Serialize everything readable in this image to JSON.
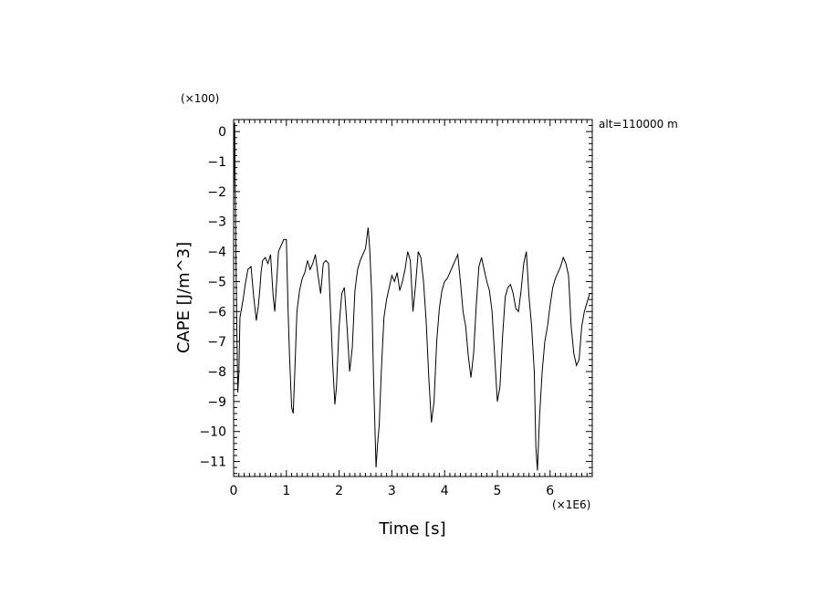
{
  "chart_data": {
    "type": "line",
    "xlabel": "Time [s]",
    "ylabel": "CAPE [J/m^3]",
    "x_multiplier": "(×1E6)",
    "y_multiplier": "(×100)",
    "annotation": "alt=110000 m",
    "xlim": [
      0,
      6.8
    ],
    "ylim": [
      -11.5,
      0.4
    ],
    "grid": false,
    "x_ticks": [
      0,
      1,
      2,
      3,
      4,
      5,
      6
    ],
    "y_ticks": [
      0,
      -1,
      -2,
      -3,
      -4,
      -5,
      -6,
      -7,
      -8,
      -9,
      -10,
      -11
    ],
    "series": [
      {
        "x": [
          0,
          0.02,
          0.04,
          0.06,
          0.08,
          0.1,
          0.12,
          0.15,
          0.18,
          0.22,
          0.27,
          0.33,
          0.38,
          0.43,
          0.47,
          0.5,
          0.52,
          0.55,
          0.6,
          0.65,
          0.7,
          0.75,
          0.78,
          0.82,
          0.85,
          0.9,
          0.95,
          1.0,
          1.03,
          1.06,
          1.1,
          1.13,
          1.16,
          1.2,
          1.25,
          1.3,
          1.35,
          1.4,
          1.45,
          1.5,
          1.55,
          1.6,
          1.65,
          1.7,
          1.75,
          1.8,
          1.85,
          1.88,
          1.92,
          1.95,
          2.0,
          2.05,
          2.1,
          2.15,
          2.2,
          2.25,
          2.3,
          2.35,
          2.4,
          2.45,
          2.5,
          2.55,
          2.58,
          2.62,
          2.65,
          2.7,
          2.73,
          2.76,
          2.8,
          2.85,
          2.9,
          2.95,
          3.0,
          3.05,
          3.1,
          3.15,
          3.2,
          3.25,
          3.3,
          3.35,
          3.4,
          3.45,
          3.5,
          3.55,
          3.6,
          3.65,
          3.7,
          3.75,
          3.8,
          3.85,
          3.9,
          3.95,
          4.0,
          4.05,
          4.1,
          4.15,
          4.2,
          4.25,
          4.3,
          4.35,
          4.4,
          4.45,
          4.5,
          4.55,
          4.6,
          4.65,
          4.7,
          4.75,
          4.8,
          4.85,
          4.9,
          4.95,
          5.0,
          5.05,
          5.1,
          5.15,
          5.2,
          5.25,
          5.3,
          5.35,
          5.4,
          5.45,
          5.5,
          5.55,
          5.6,
          5.65,
          5.7,
          5.73,
          5.76,
          5.8,
          5.85,
          5.9,
          5.95,
          6.0,
          6.05,
          6.1,
          6.15,
          6.2,
          6.25,
          6.3,
          6.35,
          6.4,
          6.45,
          6.5,
          6.55,
          6.6,
          6.65,
          6.7,
          6.75,
          6.8
        ],
        "y": [
          -2.5,
          0.3,
          -3.5,
          -6.5,
          -8.7,
          -8.0,
          -6.2,
          -5.9,
          -5.6,
          -5.1,
          -4.6,
          -4.5,
          -5.5,
          -6.3,
          -5.8,
          -5.2,
          -4.7,
          -4.3,
          -4.2,
          -4.4,
          -4.1,
          -5.5,
          -6.0,
          -4.9,
          -4.0,
          -3.8,
          -3.6,
          -3.6,
          -5.8,
          -7.5,
          -9.2,
          -9.4,
          -8.0,
          -6.0,
          -5.3,
          -4.9,
          -4.7,
          -4.3,
          -4.6,
          -4.4,
          -4.1,
          -4.8,
          -5.4,
          -4.4,
          -4.3,
          -4.4,
          -6.5,
          -7.8,
          -9.1,
          -8.5,
          -6.5,
          -5.4,
          -5.2,
          -6.5,
          -8.0,
          -7.2,
          -5.3,
          -4.6,
          -4.3,
          -4.1,
          -3.9,
          -3.2,
          -3.9,
          -5.5,
          -8.0,
          -11.2,
          -10.4,
          -9.8,
          -8.0,
          -6.2,
          -5.6,
          -5.2,
          -4.8,
          -5.0,
          -4.7,
          -5.3,
          -5.0,
          -4.6,
          -4.0,
          -4.3,
          -6.0,
          -5.1,
          -4.0,
          -4.2,
          -5.0,
          -6.3,
          -8.2,
          -9.7,
          -9.0,
          -7.0,
          -5.9,
          -5.3,
          -5.0,
          -4.9,
          -4.7,
          -4.5,
          -4.3,
          -4.1,
          -5.0,
          -6.0,
          -6.5,
          -7.5,
          -8.2,
          -7.4,
          -5.8,
          -4.5,
          -4.2,
          -4.6,
          -5.0,
          -5.3,
          -6.0,
          -7.5,
          -9.0,
          -8.5,
          -6.8,
          -5.5,
          -5.2,
          -5.1,
          -5.4,
          -5.9,
          -6.0,
          -5.3,
          -4.4,
          -4.0,
          -5.5,
          -6.5,
          -8.0,
          -10.5,
          -11.3,
          -9.5,
          -8.0,
          -7.0,
          -6.5,
          -5.8,
          -5.2,
          -4.9,
          -4.7,
          -4.5,
          -4.2,
          -4.4,
          -4.8,
          -6.5,
          -7.4,
          -7.8,
          -7.6,
          -6.5,
          -6.0,
          -5.7,
          -5.4,
          -5.4
        ]
      }
    ]
  }
}
